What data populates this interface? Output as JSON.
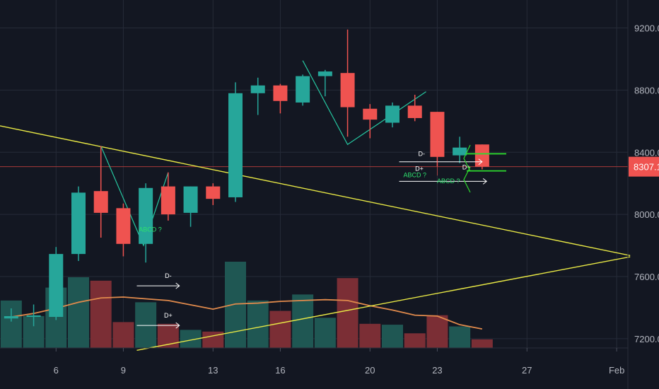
{
  "chart_data": {
    "type": "candlestick",
    "title": "",
    "colors": {
      "background": "#131722",
      "grid": "#262b38",
      "up": "#26a69a",
      "down": "#ef5350",
      "up_volume": "#1f5753",
      "down_volume": "#7b2e35",
      "volume_ma": "#e08a4c",
      "trendline": "#e8e845",
      "current_price_line": "#a83a3a",
      "pattern_line": "#26c6a0",
      "arrows": "#2ed92e",
      "annotation": "#ffffff",
      "pattern_label": "#2ee06e"
    },
    "y_axis": {
      "range": [
        7140,
        9380
      ],
      "ticks": [
        {
          "value": 9200,
          "label": "9200.0"
        },
        {
          "value": 8800,
          "label": "8800.0"
        },
        {
          "value": 8400,
          "label": "8400.0"
        },
        {
          "value": 8000,
          "label": "8000.0"
        },
        {
          "value": 7600,
          "label": "7600.0"
        },
        {
          "value": 7200,
          "label": "7200.0"
        }
      ]
    },
    "x_axis": {
      "range": [
        3.5,
        31.5
      ],
      "ticks": [
        {
          "value": 6,
          "label": "6"
        },
        {
          "value": 9,
          "label": "9"
        },
        {
          "value": 13,
          "label": "13"
        },
        {
          "value": 16,
          "label": "16"
        },
        {
          "value": 20,
          "label": "20"
        },
        {
          "value": 23,
          "label": "23"
        },
        {
          "value": 27,
          "label": "27"
        },
        {
          "value": 31,
          "label": "Feb"
        }
      ]
    },
    "current_price": {
      "value": 8307.1,
      "label": "8307.1"
    },
    "candles": [
      {
        "day": 4,
        "open": 7330,
        "high": 7395,
        "low": 7310,
        "close": 7345
      },
      {
        "day": 5,
        "open": 7340,
        "high": 7420,
        "low": 7280,
        "close": 7350
      },
      {
        "day": 6,
        "open": 7340,
        "high": 7790,
        "low": 7320,
        "close": 7745
      },
      {
        "day": 7,
        "open": 7745,
        "high": 8180,
        "low": 7700,
        "close": 8140
      },
      {
        "day": 8,
        "open": 8150,
        "high": 8440,
        "low": 7850,
        "close": 8010
      },
      {
        "day": 9,
        "open": 8040,
        "high": 8070,
        "low": 7730,
        "close": 7810
      },
      {
        "day": 10,
        "open": 7810,
        "high": 8200,
        "low": 7690,
        "close": 8170
      },
      {
        "day": 11,
        "open": 8180,
        "high": 8270,
        "low": 7960,
        "close": 8000
      },
      {
        "day": 12,
        "open": 8010,
        "high": 8180,
        "low": 7920,
        "close": 8180
      },
      {
        "day": 13,
        "open": 8180,
        "high": 8200,
        "low": 8060,
        "close": 8100
      },
      {
        "day": 14,
        "open": 8110,
        "high": 8850,
        "low": 8080,
        "close": 8780
      },
      {
        "day": 15,
        "open": 8780,
        "high": 8880,
        "low": 8640,
        "close": 8830
      },
      {
        "day": 16,
        "open": 8830,
        "high": 8840,
        "low": 8650,
        "close": 8730
      },
      {
        "day": 17,
        "open": 8720,
        "high": 8900,
        "low": 8700,
        "close": 8890
      },
      {
        "day": 18,
        "open": 8890,
        "high": 8930,
        "low": 8760,
        "close": 8920
      },
      {
        "day": 19,
        "open": 8910,
        "high": 9190,
        "low": 8500,
        "close": 8690
      },
      {
        "day": 20,
        "open": 8680,
        "high": 8710,
        "low": 8490,
        "close": 8610
      },
      {
        "day": 21,
        "open": 8590,
        "high": 8720,
        "low": 8560,
        "close": 8700
      },
      {
        "day": 22,
        "open": 8700,
        "high": 8770,
        "low": 8600,
        "close": 8620
      },
      {
        "day": 23,
        "open": 8660,
        "high": 8660,
        "low": 8310,
        "close": 8370
      },
      {
        "day": 24,
        "open": 8380,
        "high": 8500,
        "low": 8330,
        "close": 8430
      },
      {
        "day": 25,
        "open": 8450,
        "high": 8450,
        "low": 8290,
        "close": 8307
      }
    ],
    "volume": {
      "display_range": [
        0,
        1
      ],
      "values": [
        0.55,
        0.37,
        0.7,
        0.82,
        0.78,
        0.3,
        0.53,
        0.28,
        0.21,
        0.19,
        1.0,
        0.55,
        0.43,
        0.62,
        0.35,
        0.81,
        0.28,
        0.27,
        0.17,
        0.38,
        0.25,
        0.1
      ],
      "moving_average": [
        0.36,
        0.4,
        0.46,
        0.53,
        0.58,
        0.59,
        0.57,
        0.55,
        0.5,
        0.45,
        0.51,
        0.52,
        0.54,
        0.55,
        0.56,
        0.55,
        0.49,
        0.44,
        0.38,
        0.37,
        0.27,
        0.22
      ]
    },
    "lines": [
      {
        "kind": "trendline",
        "from": {
          "day": 3.5,
          "price": 8570
        },
        "to": {
          "day": 31.6,
          "price": 7735
        }
      },
      {
        "kind": "trendline",
        "from": {
          "day": 9.6,
          "price": 7125
        },
        "to": {
          "day": 31.6,
          "price": 7727
        }
      },
      {
        "kind": "pattern",
        "points": [
          {
            "day": 8,
            "price": 8440
          },
          {
            "day": 9.9,
            "price": 7800
          },
          {
            "day": 11,
            "price": 8270
          }
        ]
      },
      {
        "kind": "pattern",
        "points": [
          {
            "day": 17,
            "price": 8990
          },
          {
            "day": 19,
            "price": 8450
          },
          {
            "day": 22.5,
            "price": 8790
          }
        ]
      }
    ],
    "annotations": [
      {
        "text": "ABCD ?",
        "kind": "pattern_label",
        "day": 10.2,
        "price": 7890
      },
      {
        "text": "ABCD ?",
        "kind": "pattern_label",
        "day": 23.5,
        "price": 8200
      },
      {
        "text": "ABCD ?",
        "kind": "pattern_label",
        "day": 22,
        "price": 8240
      },
      {
        "text": "D-",
        "kind": "marker",
        "day": 11,
        "price": 7590
      },
      {
        "text": "D+",
        "kind": "marker",
        "day": 11,
        "price": 7335
      },
      {
        "text": "D-",
        "kind": "marker",
        "day": 22.3,
        "price": 8375
      },
      {
        "text": "D+",
        "kind": "marker",
        "day": 22.2,
        "price": 8280
      },
      {
        "text": "D+",
        "kind": "marker",
        "day": 24.3,
        "price": 8290
      }
    ]
  }
}
